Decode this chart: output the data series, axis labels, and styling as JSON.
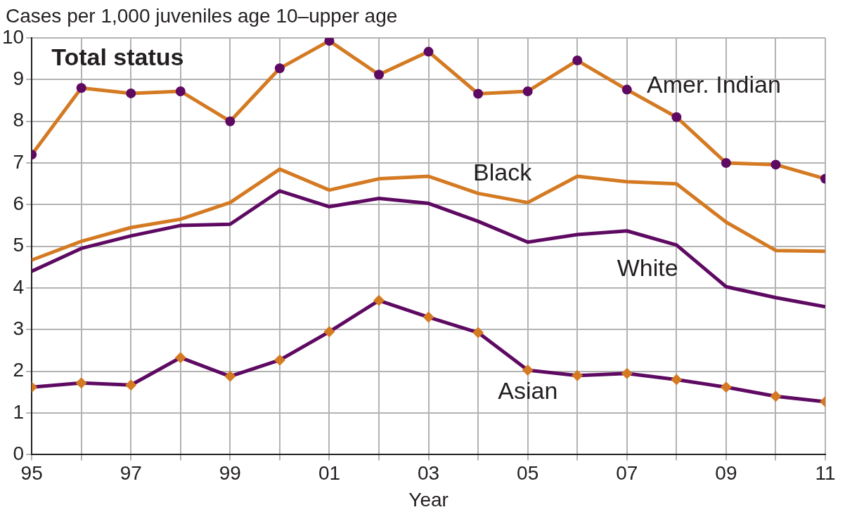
{
  "chart_data": {
    "type": "line",
    "title": "Total status",
    "ylabel": "Cases per 1,000 juveniles age 10–upper age",
    "xlabel": "Year",
    "x": [
      1995,
      1996,
      1997,
      1998,
      1999,
      2000,
      2001,
      2002,
      2003,
      2004,
      2005,
      2006,
      2007,
      2008,
      2009,
      2010,
      2011
    ],
    "series": [
      {
        "name": "Amer. Indian",
        "color": "#d47a22",
        "marker": "circle",
        "values": [
          7.2,
          8.8,
          8.67,
          8.72,
          8.0,
          9.27,
          9.93,
          9.12,
          9.67,
          8.66,
          8.72,
          9.46,
          8.76,
          8.1,
          7.0,
          6.96,
          6.62
        ]
      },
      {
        "name": "Black",
        "color": "#d47a22",
        "marker": "none",
        "values": [
          4.67,
          5.12,
          5.45,
          5.65,
          6.05,
          6.85,
          6.35,
          6.62,
          6.68,
          6.27,
          6.05,
          6.68,
          6.55,
          6.5,
          5.58,
          4.9,
          4.88
        ]
      },
      {
        "name": "White",
        "color": "#5e0a62",
        "marker": "none",
        "values": [
          4.4,
          4.95,
          5.25,
          5.5,
          5.53,
          6.33,
          5.95,
          6.15,
          6.03,
          5.6,
          5.1,
          5.28,
          5.37,
          5.03,
          4.03,
          3.77,
          3.55
        ]
      },
      {
        "name": "Asian",
        "color": "#5e0a62",
        "marker": "diamond",
        "values": [
          1.62,
          1.72,
          1.67,
          2.33,
          1.88,
          2.27,
          2.95,
          3.7,
          3.3,
          2.93,
          2.03,
          1.9,
          1.95,
          1.8,
          1.62,
          1.4,
          1.27
        ]
      }
    ],
    "xlim": [
      1995,
      2011
    ],
    "xticks": [
      {
        "value": 1995,
        "label": "95"
      },
      {
        "value": 1996,
        "label": null
      },
      {
        "value": 1997,
        "label": "97"
      },
      {
        "value": 1998,
        "label": null
      },
      {
        "value": 1999,
        "label": "99"
      },
      {
        "value": 2000,
        "label": null
      },
      {
        "value": 2001,
        "label": "01"
      },
      {
        "value": 2002,
        "label": null
      },
      {
        "value": 2003,
        "label": "03"
      },
      {
        "value": 2004,
        "label": null
      },
      {
        "value": 2005,
        "label": "05"
      },
      {
        "value": 2006,
        "label": null
      },
      {
        "value": 2007,
        "label": "07"
      },
      {
        "value": 2008,
        "label": null
      },
      {
        "value": 2009,
        "label": "09"
      },
      {
        "value": 2010,
        "label": null
      },
      {
        "value": 2011,
        "label": "11"
      }
    ],
    "ylim": [
      0,
      10
    ],
    "yticks": [
      0,
      1,
      2,
      3,
      4,
      5,
      6,
      7,
      8,
      9,
      10
    ],
    "grid": true,
    "legend": false
  }
}
